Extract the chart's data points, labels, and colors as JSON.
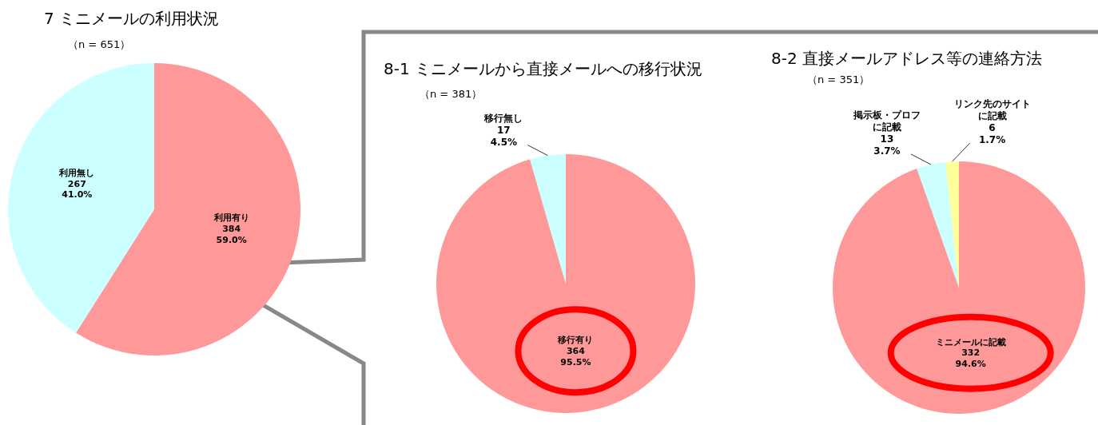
{
  "chart_data": [
    {
      "type": "pie",
      "title": "7 ミニメールの利用状況",
      "subtitle": "（n = 651）",
      "categories": [
        "利用有り",
        "利用無し"
      ],
      "values": [
        384,
        267
      ],
      "colors": [
        "#ff9999",
        "#ccffff"
      ],
      "value_labels": [
        "384\n59.0%",
        "267\n41.0%"
      ]
    },
    {
      "type": "pie",
      "title": "8-1 ミニメールから直接メールへの移行状況",
      "subtitle": "（n = 381）",
      "categories": [
        "移行有り",
        "移行無し"
      ],
      "values": [
        364,
        17
      ],
      "colors": [
        "#ff9999",
        "#ccffff"
      ],
      "value_labels": [
        "364\n95.5%",
        "17\n4.5%"
      ]
    },
    {
      "type": "pie",
      "title": "8-2 直接メールアドレス等の連絡方法",
      "subtitle": "（n = 351）",
      "categories": [
        "ミニメールに記載",
        "掲示板・プロフに記載",
        "リンク先のサイトに記載"
      ],
      "values": [
        332,
        13,
        6
      ],
      "colors": [
        "#ff9999",
        "#ccffff",
        "#ffff99"
      ],
      "value_labels": [
        "332\n94.6%",
        "13\n3.7%",
        "6\n1.7%"
      ]
    }
  ]
}
